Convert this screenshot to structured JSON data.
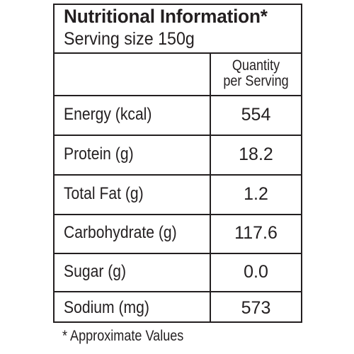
{
  "panel": {
    "title": "Nutritional Information*",
    "serving_size": "Serving size 150g",
    "column_header_line1": "Quantity",
    "column_header_line2": "per Serving"
  },
  "rows": [
    {
      "nutrient": "Energy (kcal)",
      "value": "554"
    },
    {
      "nutrient": "Protein (g)",
      "value": "18.2"
    },
    {
      "nutrient": "Total Fat (g)",
      "value": "1.2"
    },
    {
      "nutrient": "Carbohydrate (g)",
      "value": "117.6"
    },
    {
      "nutrient": "Sugar (g)",
      "value": "0.0"
    },
    {
      "nutrient": "Sodium (mg)",
      "value": "573"
    }
  ],
  "footnote": "* Approximate Values"
}
